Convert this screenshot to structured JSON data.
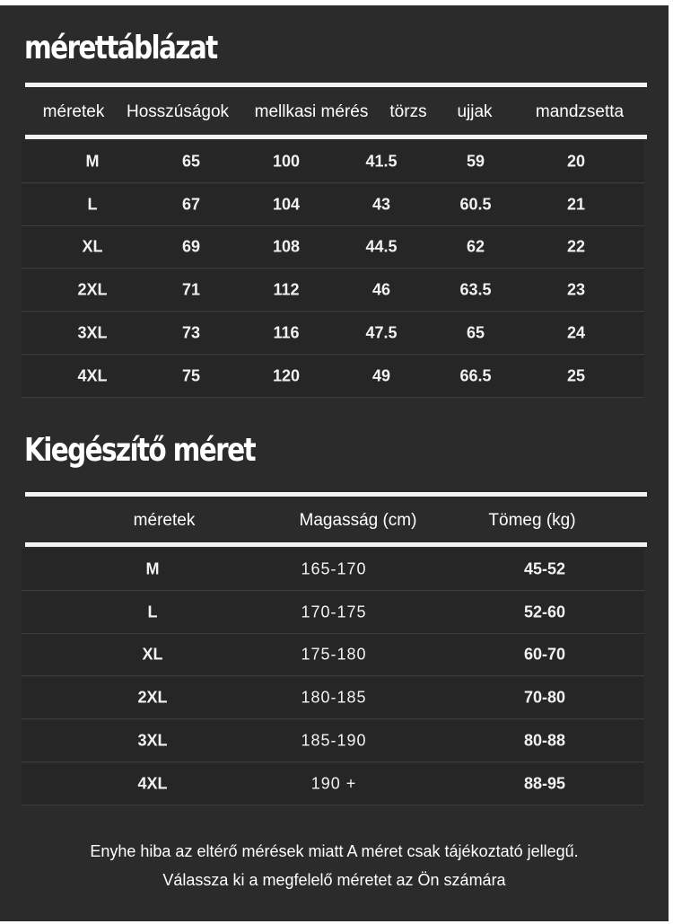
{
  "size_chart": {
    "title": "mérettáblázat",
    "headers": [
      "méretek",
      "Hosszúságok",
      "mellkasi mérés",
      "törzs",
      "ujjak",
      "mandzsetta"
    ],
    "rows": [
      [
        "M",
        "65",
        "100",
        "41.5",
        "59",
        "20"
      ],
      [
        "L",
        "67",
        "104",
        "43",
        "60.5",
        "21"
      ],
      [
        "XL",
        "69",
        "108",
        "44.5",
        "62",
        "22"
      ],
      [
        "2XL",
        "71",
        "112",
        "46",
        "63.5",
        "23"
      ],
      [
        "3XL",
        "73",
        "116",
        "47.5",
        "65",
        "24"
      ],
      [
        "4XL",
        "75",
        "120",
        "49",
        "66.5",
        "25"
      ]
    ]
  },
  "extra_size": {
    "title": "Kiegészítő méret",
    "headers": [
      "méretek",
      "Magasság (cm)",
      "Tömeg (kg)"
    ],
    "rows": [
      [
        "M",
        "165-170",
        "45-52"
      ],
      [
        "L",
        "170-175",
        "52-60"
      ],
      [
        "XL",
        "175-180",
        "60-70"
      ],
      [
        "2XL",
        "180-185",
        "70-80"
      ],
      [
        "3XL",
        "185-190",
        "80-88"
      ],
      [
        "4XL",
        "190 +",
        "88-95"
      ]
    ]
  },
  "footer": {
    "line1": "Enyhe hiba az eltérő mérések miatt A méret csak tájékoztató jellegű.",
    "line2": "Válassza ki a megfelelő méretet az Ön számára"
  },
  "colors": {
    "background": "#2b2b2b",
    "row": "#262626",
    "text": "#ffffff"
  }
}
